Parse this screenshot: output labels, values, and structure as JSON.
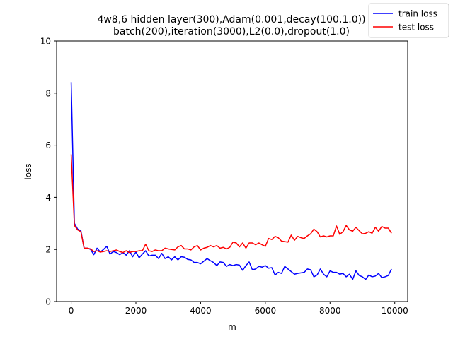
{
  "chart_data": {
    "type": "line",
    "title_line1": "4w8,6 hidden layer(300),Adam(0.001,decay(100,1.0))",
    "title_line2": "batch(200),iteration(3000),L2(0.0),dropout(1.0)",
    "xlabel": "m",
    "ylabel": "loss",
    "xlim": [
      -450,
      10400
    ],
    "ylim": [
      0,
      10
    ],
    "xticks": [
      0,
      2000,
      4000,
      6000,
      8000,
      10000
    ],
    "xtick_labels": [
      "0",
      "2000",
      "4000",
      "6000",
      "8000",
      "10000"
    ],
    "yticks": [
      0,
      2,
      4,
      6,
      8,
      10
    ],
    "ytick_labels": [
      "0",
      "2",
      "4",
      "6",
      "8",
      "10"
    ],
    "grid": false,
    "legend_position": "top-right",
    "x": [
      0,
      100,
      200,
      300,
      400,
      500,
      600,
      700,
      800,
      900,
      1000,
      1100,
      1200,
      1300,
      1400,
      1500,
      1600,
      1700,
      1800,
      1900,
      2000,
      2100,
      2200,
      2300,
      2400,
      2500,
      2600,
      2700,
      2800,
      2900,
      3000,
      3100,
      3200,
      3300,
      3400,
      3500,
      3600,
      3700,
      3800,
      3900,
      4000,
      4100,
      4200,
      4300,
      4400,
      4500,
      4600,
      4700,
      4800,
      4900,
      5000,
      5100,
      5200,
      5300,
      5400,
      5500,
      5600,
      5700,
      5800,
      5900,
      6000,
      6100,
      6200,
      6300,
      6400,
      6500,
      6600,
      6700,
      6800,
      6900,
      7000,
      7100,
      7200,
      7300,
      7400,
      7500,
      7600,
      7700,
      7800,
      7900,
      8000,
      8100,
      8200,
      8300,
      8400,
      8500,
      8600,
      8700,
      8800,
      8900,
      9000,
      9100,
      9200,
      9300,
      9400,
      9500,
      9600,
      9700,
      9800,
      9900
    ],
    "series": [
      {
        "name": "train loss",
        "color": "#0000ff",
        "values": [
          8.42,
          3.0,
          2.78,
          2.72,
          2.05,
          2.05,
          2.0,
          1.8,
          2.05,
          1.9,
          2.0,
          2.12,
          1.82,
          1.92,
          1.88,
          1.8,
          1.88,
          1.78,
          1.95,
          1.72,
          1.9,
          1.68,
          1.82,
          1.95,
          1.75,
          1.78,
          1.78,
          1.65,
          1.85,
          1.65,
          1.72,
          1.6,
          1.72,
          1.6,
          1.72,
          1.7,
          1.62,
          1.6,
          1.5,
          1.5,
          1.45,
          1.55,
          1.65,
          1.57,
          1.5,
          1.38,
          1.52,
          1.5,
          1.35,
          1.42,
          1.38,
          1.42,
          1.4,
          1.2,
          1.38,
          1.52,
          1.22,
          1.25,
          1.35,
          1.32,
          1.38,
          1.28,
          1.3,
          1.02,
          1.12,
          1.08,
          1.35,
          1.25,
          1.15,
          1.05,
          1.08,
          1.1,
          1.12,
          1.25,
          1.22,
          0.95,
          1.02,
          1.25,
          1.05,
          0.95,
          1.18,
          1.12,
          1.12,
          1.05,
          1.08,
          0.95,
          1.05,
          0.85,
          1.18,
          1.0,
          0.95,
          0.85,
          1.02,
          0.95,
          0.98,
          1.08,
          0.92,
          0.95,
          1.0,
          1.25
        ]
      },
      {
        "name": "test loss",
        "color": "#ff0000",
        "values": [
          5.65,
          2.92,
          2.75,
          2.68,
          2.05,
          2.05,
          2.02,
          1.92,
          1.95,
          1.9,
          1.92,
          1.95,
          1.92,
          1.95,
          1.98,
          1.92,
          1.88,
          1.95,
          1.88,
          1.92,
          1.92,
          1.95,
          1.95,
          2.2,
          1.95,
          1.92,
          1.98,
          1.95,
          1.95,
          2.05,
          2.02,
          2.0,
          1.98,
          2.1,
          2.15,
          2.02,
          2.02,
          1.98,
          2.1,
          2.15,
          1.98,
          2.05,
          2.08,
          2.15,
          2.1,
          2.15,
          2.05,
          2.08,
          2.02,
          2.08,
          2.28,
          2.25,
          2.1,
          2.25,
          2.05,
          2.25,
          2.25,
          2.18,
          2.25,
          2.18,
          2.12,
          2.42,
          2.38,
          2.5,
          2.45,
          2.32,
          2.3,
          2.28,
          2.55,
          2.35,
          2.5,
          2.45,
          2.42,
          2.52,
          2.6,
          2.78,
          2.68,
          2.48,
          2.52,
          2.48,
          2.52,
          2.52,
          2.9,
          2.58,
          2.68,
          2.92,
          2.75,
          2.7,
          2.85,
          2.72,
          2.6,
          2.62,
          2.68,
          2.62,
          2.85,
          2.7,
          2.88,
          2.82,
          2.82,
          2.62
        ]
      }
    ]
  }
}
